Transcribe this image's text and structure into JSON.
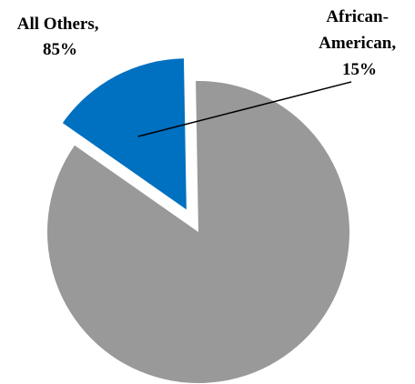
{
  "chart_data": {
    "type": "pie",
    "slices": [
      {
        "label_lines": [
          "African-",
          "American,",
          "15%"
        ],
        "category": "African-American",
        "value": 15,
        "color": "#0070C0",
        "exploded": true
      },
      {
        "label_lines": [
          "All Others,",
          "85%"
        ],
        "category": "All Others",
        "value": 85,
        "color": "#999999",
        "exploded": false
      }
    ],
    "legend": "none",
    "data_labels": "outside"
  }
}
